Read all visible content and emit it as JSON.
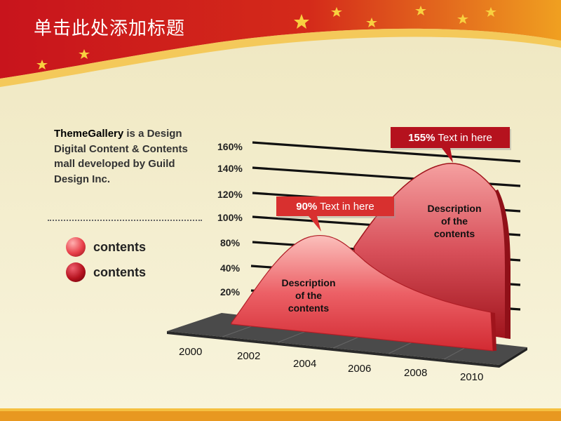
{
  "slide": {
    "title": "单击此处添加标题"
  },
  "description": {
    "brand": "ThemeGallery",
    "text": " is a Design Digital Content & Contents mall developed by Guild Design Inc."
  },
  "legend": [
    {
      "label": "contents",
      "color": "#e8404a"
    },
    {
      "label": "contents",
      "color": "#b5121e"
    }
  ],
  "colors": {
    "front": "#e84a50",
    "back": "#c1262e",
    "callout": "#d8302f",
    "floor": "#4a4a4a",
    "accent": "#c8141c"
  },
  "chart_data": {
    "type": "area",
    "y_ticks": [
      "160%",
      "140%",
      "120%",
      "100%",
      "80%",
      "40%",
      "20%"
    ],
    "x_ticks": [
      "2000",
      "2002",
      "2004",
      "2006",
      "2008",
      "2010"
    ],
    "series": [
      {
        "x": [
          "2000",
          "2002",
          "2004",
          "2006",
          "2008",
          "2010"
        ],
        "values": [
          0,
          50,
          90,
          55,
          20,
          12
        ]
      },
      {
        "x": [
          "2002",
          "2004",
          "2006",
          "2008",
          "2010"
        ],
        "values": [
          40,
          80,
          128,
          155,
          110
        ]
      }
    ],
    "annotations": [
      {
        "value": "90%",
        "text": " Text in here"
      },
      {
        "value": "155%",
        "text": " Text in here"
      }
    ],
    "area_labels": [
      {
        "lines": [
          "Description",
          "of the",
          "contents"
        ]
      },
      {
        "lines": [
          "Description",
          "of the",
          "contents"
        ]
      }
    ]
  }
}
